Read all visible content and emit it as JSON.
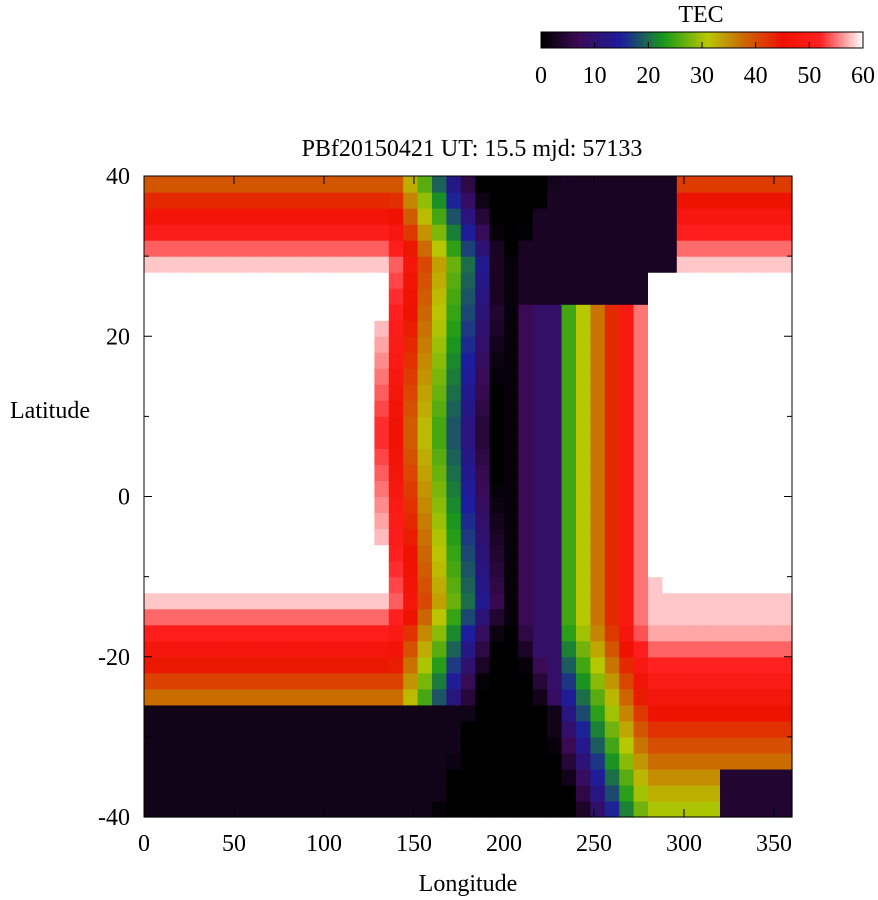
{
  "chart_data": {
    "type": "heatmap",
    "title": "PBf20150421  UT: 15.5  mjd: 57133",
    "xlabel": "Longitude",
    "ylabel": "Latitude",
    "xlim": [
      0,
      360
    ],
    "ylim": [
      -40,
      40
    ],
    "x_ticks": [
      0,
      50,
      100,
      150,
      200,
      250,
      300,
      350
    ],
    "y_ticks": [
      -40,
      -20,
      0,
      20,
      40
    ],
    "colorbar": {
      "label": "TEC",
      "range": [
        0,
        60
      ],
      "ticks": [
        0,
        10,
        20,
        30,
        40,
        50,
        60
      ],
      "stops": [
        {
          "value": 0,
          "color": "#000000"
        },
        {
          "value": 7,
          "color": "#3a0a55"
        },
        {
          "value": 15,
          "color": "#1d1d9e"
        },
        {
          "value": 23,
          "color": "#1a9a1a"
        },
        {
          "value": 31,
          "color": "#b8c800"
        },
        {
          "value": 38,
          "color": "#cc6600"
        },
        {
          "value": 45,
          "color": "#ee1100"
        },
        {
          "value": 52,
          "color": "#ff2020"
        },
        {
          "value": 60,
          "color": "#ffffff"
        }
      ]
    },
    "grid": {
      "lon_step": 8,
      "lat_step": 2,
      "values_generated_from": "approximate TEC field: dayside crest saturating at 60 over lon 0-125 and 280-360 for lat -12..28, low ~0 values near lon 200-290 north of 25 and south of -25"
    }
  }
}
